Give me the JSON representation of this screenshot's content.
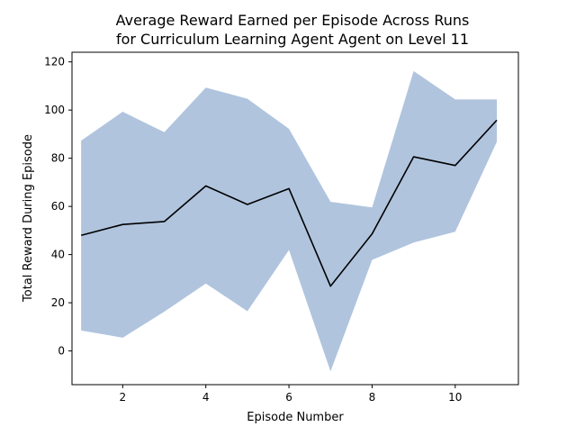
{
  "chart_data": {
    "type": "line",
    "title_line1": "Average Reward Earned per Episode Across Runs",
    "title_line2": "for Curriculum Learning Agent Agent on Level 11",
    "xlabel": "Episode Number",
    "ylabel": "Total Reward During Episode",
    "xlim": [
      0.78,
      11.52
    ],
    "ylim": [
      -14,
      124
    ],
    "xticks": [
      2,
      4,
      6,
      8,
      10
    ],
    "yticks": [
      0,
      20,
      40,
      60,
      80,
      100,
      120
    ],
    "grid": false,
    "legend": "none",
    "x": [
      1,
      2,
      3,
      4,
      5,
      6,
      7,
      8,
      9,
      10,
      11
    ],
    "series": [
      {
        "values": [
          48.0,
          52.5,
          53.7,
          68.5,
          60.8,
          67.4,
          26.9,
          48.6,
          80.6,
          77.0,
          95.8
        ],
        "color": "#000000"
      }
    ],
    "band": {
      "upper": [
        87.3,
        99.3,
        90.8,
        109.3,
        104.7,
        92.2,
        61.9,
        59.6,
        116.2,
        104.4,
        104.4
      ],
      "lower": [
        8.5,
        5.5,
        16.3,
        28.0,
        16.5,
        41.9,
        -8.5,
        37.8,
        45.0,
        49.5,
        86.8
      ],
      "color": "#b0c4de"
    }
  }
}
